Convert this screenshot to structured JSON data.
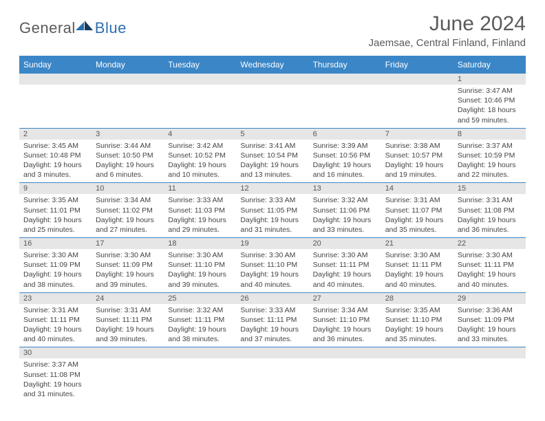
{
  "logo": {
    "text1": "General",
    "text2": "Blue"
  },
  "title": "June 2024",
  "location": "Jaemsae, Central Finland, Finland",
  "colors": {
    "header_bg": "#3b86c7",
    "header_text": "#ffffff",
    "daynum_bg": "#e6e6e6",
    "row_divider": "#3b86c7",
    "body_text": "#444444",
    "title_text": "#5a5a5a",
    "logo_blue": "#2b6fb0"
  },
  "day_headers": [
    "Sunday",
    "Monday",
    "Tuesday",
    "Wednesday",
    "Thursday",
    "Friday",
    "Saturday"
  ],
  "weeks": [
    [
      null,
      null,
      null,
      null,
      null,
      null,
      {
        "n": "1",
        "sunrise": "Sunrise: 3:47 AM",
        "sunset": "Sunset: 10:46 PM",
        "daylight": "Daylight: 18 hours and 59 minutes."
      }
    ],
    [
      {
        "n": "2",
        "sunrise": "Sunrise: 3:45 AM",
        "sunset": "Sunset: 10:48 PM",
        "daylight": "Daylight: 19 hours and 3 minutes."
      },
      {
        "n": "3",
        "sunrise": "Sunrise: 3:44 AM",
        "sunset": "Sunset: 10:50 PM",
        "daylight": "Daylight: 19 hours and 6 minutes."
      },
      {
        "n": "4",
        "sunrise": "Sunrise: 3:42 AM",
        "sunset": "Sunset: 10:52 PM",
        "daylight": "Daylight: 19 hours and 10 minutes."
      },
      {
        "n": "5",
        "sunrise": "Sunrise: 3:41 AM",
        "sunset": "Sunset: 10:54 PM",
        "daylight": "Daylight: 19 hours and 13 minutes."
      },
      {
        "n": "6",
        "sunrise": "Sunrise: 3:39 AM",
        "sunset": "Sunset: 10:56 PM",
        "daylight": "Daylight: 19 hours and 16 minutes."
      },
      {
        "n": "7",
        "sunrise": "Sunrise: 3:38 AM",
        "sunset": "Sunset: 10:57 PM",
        "daylight": "Daylight: 19 hours and 19 minutes."
      },
      {
        "n": "8",
        "sunrise": "Sunrise: 3:37 AM",
        "sunset": "Sunset: 10:59 PM",
        "daylight": "Daylight: 19 hours and 22 minutes."
      }
    ],
    [
      {
        "n": "9",
        "sunrise": "Sunrise: 3:35 AM",
        "sunset": "Sunset: 11:01 PM",
        "daylight": "Daylight: 19 hours and 25 minutes."
      },
      {
        "n": "10",
        "sunrise": "Sunrise: 3:34 AM",
        "sunset": "Sunset: 11:02 PM",
        "daylight": "Daylight: 19 hours and 27 minutes."
      },
      {
        "n": "11",
        "sunrise": "Sunrise: 3:33 AM",
        "sunset": "Sunset: 11:03 PM",
        "daylight": "Daylight: 19 hours and 29 minutes."
      },
      {
        "n": "12",
        "sunrise": "Sunrise: 3:33 AM",
        "sunset": "Sunset: 11:05 PM",
        "daylight": "Daylight: 19 hours and 31 minutes."
      },
      {
        "n": "13",
        "sunrise": "Sunrise: 3:32 AM",
        "sunset": "Sunset: 11:06 PM",
        "daylight": "Daylight: 19 hours and 33 minutes."
      },
      {
        "n": "14",
        "sunrise": "Sunrise: 3:31 AM",
        "sunset": "Sunset: 11:07 PM",
        "daylight": "Daylight: 19 hours and 35 minutes."
      },
      {
        "n": "15",
        "sunrise": "Sunrise: 3:31 AM",
        "sunset": "Sunset: 11:08 PM",
        "daylight": "Daylight: 19 hours and 36 minutes."
      }
    ],
    [
      {
        "n": "16",
        "sunrise": "Sunrise: 3:30 AM",
        "sunset": "Sunset: 11:09 PM",
        "daylight": "Daylight: 19 hours and 38 minutes."
      },
      {
        "n": "17",
        "sunrise": "Sunrise: 3:30 AM",
        "sunset": "Sunset: 11:09 PM",
        "daylight": "Daylight: 19 hours and 39 minutes."
      },
      {
        "n": "18",
        "sunrise": "Sunrise: 3:30 AM",
        "sunset": "Sunset: 11:10 PM",
        "daylight": "Daylight: 19 hours and 39 minutes."
      },
      {
        "n": "19",
        "sunrise": "Sunrise: 3:30 AM",
        "sunset": "Sunset: 11:10 PM",
        "daylight": "Daylight: 19 hours and 40 minutes."
      },
      {
        "n": "20",
        "sunrise": "Sunrise: 3:30 AM",
        "sunset": "Sunset: 11:11 PM",
        "daylight": "Daylight: 19 hours and 40 minutes."
      },
      {
        "n": "21",
        "sunrise": "Sunrise: 3:30 AM",
        "sunset": "Sunset: 11:11 PM",
        "daylight": "Daylight: 19 hours and 40 minutes."
      },
      {
        "n": "22",
        "sunrise": "Sunrise: 3:30 AM",
        "sunset": "Sunset: 11:11 PM",
        "daylight": "Daylight: 19 hours and 40 minutes."
      }
    ],
    [
      {
        "n": "23",
        "sunrise": "Sunrise: 3:31 AM",
        "sunset": "Sunset: 11:11 PM",
        "daylight": "Daylight: 19 hours and 40 minutes."
      },
      {
        "n": "24",
        "sunrise": "Sunrise: 3:31 AM",
        "sunset": "Sunset: 11:11 PM",
        "daylight": "Daylight: 19 hours and 39 minutes."
      },
      {
        "n": "25",
        "sunrise": "Sunrise: 3:32 AM",
        "sunset": "Sunset: 11:11 PM",
        "daylight": "Daylight: 19 hours and 38 minutes."
      },
      {
        "n": "26",
        "sunrise": "Sunrise: 3:33 AM",
        "sunset": "Sunset: 11:11 PM",
        "daylight": "Daylight: 19 hours and 37 minutes."
      },
      {
        "n": "27",
        "sunrise": "Sunrise: 3:34 AM",
        "sunset": "Sunset: 11:10 PM",
        "daylight": "Daylight: 19 hours and 36 minutes."
      },
      {
        "n": "28",
        "sunrise": "Sunrise: 3:35 AM",
        "sunset": "Sunset: 11:10 PM",
        "daylight": "Daylight: 19 hours and 35 minutes."
      },
      {
        "n": "29",
        "sunrise": "Sunrise: 3:36 AM",
        "sunset": "Sunset: 11:09 PM",
        "daylight": "Daylight: 19 hours and 33 minutes."
      }
    ],
    [
      {
        "n": "30",
        "sunrise": "Sunrise: 3:37 AM",
        "sunset": "Sunset: 11:08 PM",
        "daylight": "Daylight: 19 hours and 31 minutes."
      },
      null,
      null,
      null,
      null,
      null,
      null
    ]
  ]
}
